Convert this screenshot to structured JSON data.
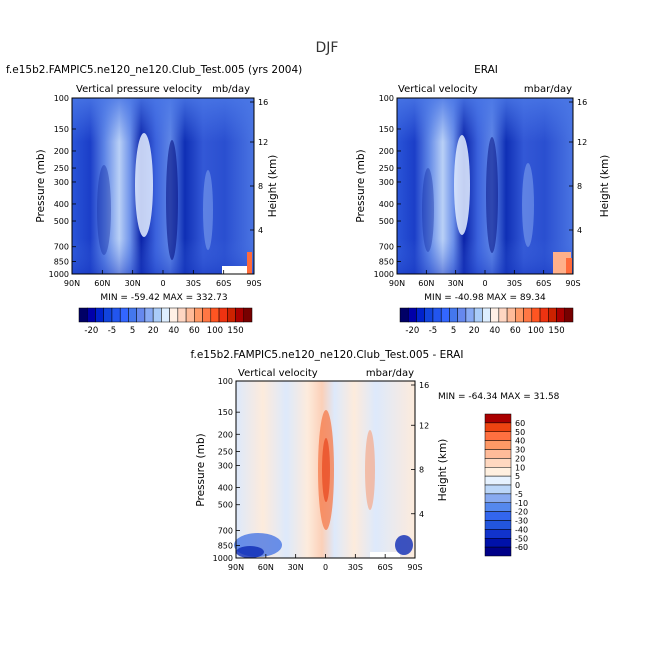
{
  "figure_title": "DJF",
  "cb_labels": [
    "-20",
    "-5",
    "5",
    "20",
    "40",
    "60",
    "100",
    "150"
  ],
  "diff_cb_labels": [
    "60",
    "50",
    "40",
    "30",
    "20",
    "10",
    "5",
    "0",
    "-5",
    "-10",
    "-20",
    "-30",
    "-40",
    "-50",
    "-60"
  ],
  "chart_data": [
    {
      "type": "heatmap",
      "title": "f.e15b2.FAMPIC5.ne120_ne120.Club_Test.005 (yrs 2004)",
      "subtitle_left": "Vertical pressure velocity",
      "subtitle_right": "mb/day",
      "xlabel": "",
      "ylabel": "Pressure (mb)",
      "ylabel_right": "Height (km)",
      "x_ticks": [
        "90N",
        "60N",
        "30N",
        "0",
        "30S",
        "60S",
        "90S"
      ],
      "y_ticks": [
        "100",
        "150",
        "200",
        "250",
        "300",
        "400",
        "500",
        "700",
        "850",
        "1000"
      ],
      "y_right_ticks": [
        "16",
        "12",
        "8",
        "4"
      ],
      "stats_text": "MIN = -59.42   MAX = 332.73",
      "colorbar_levels": [
        -30,
        -25,
        -20,
        -15,
        -10,
        -5,
        0,
        5,
        10,
        15,
        20,
        30,
        40,
        50,
        60,
        80,
        100,
        120,
        150,
        200
      ],
      "colorbar_colors": [
        "#000066",
        "#0000aa",
        "#0022cc",
        "#1144dd",
        "#2255ee",
        "#3366ff",
        "#4477ee",
        "#6688ee",
        "#88aaf4",
        "#aaccf8",
        "#ddeeff",
        "#fff0e6",
        "#ffd6c2",
        "#ffbb99",
        "#ff9966",
        "#ff7744",
        "#ff5522",
        "#ee3311",
        "#cc2200",
        "#aa0000",
        "#770000"
      ]
    },
    {
      "type": "heatmap",
      "title": "ERAI",
      "subtitle_left": "Vertical velocity",
      "subtitle_right": "mbar/day",
      "xlabel": "",
      "ylabel": "Pressure (mb)",
      "ylabel_right": "Height (km)",
      "x_ticks": [
        "90N",
        "60N",
        "30N",
        "0",
        "30S",
        "60S",
        "90S"
      ],
      "y_ticks": [
        "100",
        "150",
        "200",
        "250",
        "300",
        "400",
        "500",
        "700",
        "850",
        "1000"
      ],
      "y_right_ticks": [
        "16",
        "12",
        "8",
        "4"
      ],
      "stats_text": "MIN = -40.98   MAX =  89.34"
    },
    {
      "type": "heatmap",
      "title": "f.e15b2.FAMPIC5.ne120_ne120.Club_Test.005 - ERAI",
      "subtitle_left": "Vertical velocity",
      "subtitle_right": "mbar/day",
      "xlabel": "",
      "ylabel": "Pressure (mb)",
      "ylabel_right": "Height (km)",
      "x_ticks": [
        "90N",
        "60N",
        "30N",
        "0",
        "30S",
        "60S",
        "90S"
      ],
      "y_ticks": [
        "100",
        "150",
        "200",
        "250",
        "300",
        "400",
        "500",
        "700",
        "850",
        "1000"
      ],
      "y_right_ticks": [
        "16",
        "12",
        "8",
        "4"
      ],
      "stats_text": "MIN = -64.34   MAX =  31.58",
      "colorbar_levels": [
        -60,
        -50,
        -40,
        -30,
        -20,
        -10,
        -5,
        0,
        5,
        10,
        20,
        30,
        40,
        50,
        60
      ],
      "colorbar_colors": [
        "#000088",
        "#0011aa",
        "#1133cc",
        "#2255dd",
        "#3366ee",
        "#5588ee",
        "#88aaf0",
        "#bbd6f8",
        "#e6f2ff",
        "#fff0e0",
        "#ffd8c0",
        "#ffbb99",
        "#ff9966",
        "#ff7040",
        "#ee4411",
        "#aa0000"
      ]
    }
  ]
}
